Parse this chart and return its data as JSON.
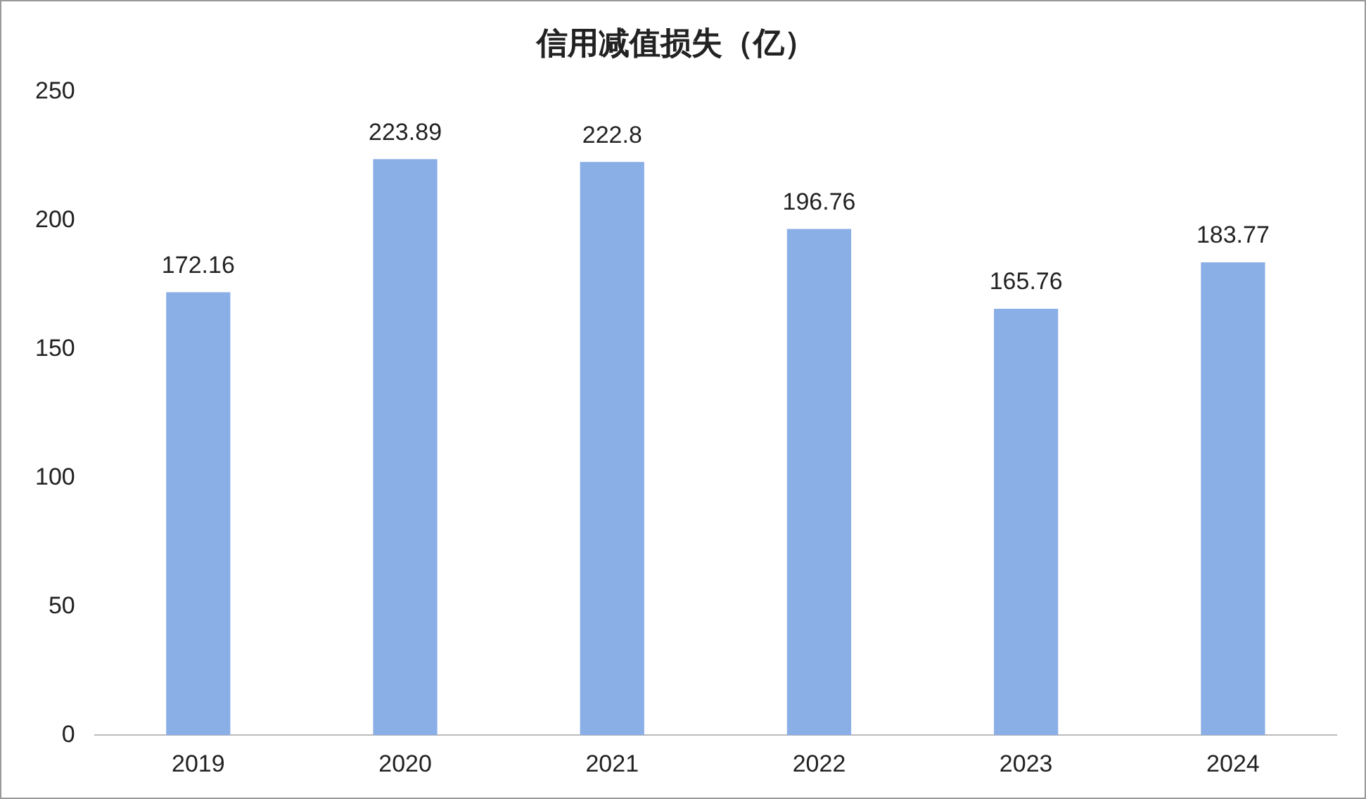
{
  "chart_data": {
    "type": "bar",
    "title": "信用减值损失（亿）",
    "categories": [
      "2019",
      "2020",
      "2021",
      "2022",
      "2023",
      "2024"
    ],
    "values": [
      172.16,
      223.89,
      222.8,
      196.76,
      165.76,
      183.77
    ],
    "color": "#8aaee6",
    "ylim": [
      0,
      250
    ],
    "yticks": [
      0,
      50,
      100,
      150,
      200,
      250
    ],
    "grid": false,
    "legend": false,
    "data_labels": true
  }
}
